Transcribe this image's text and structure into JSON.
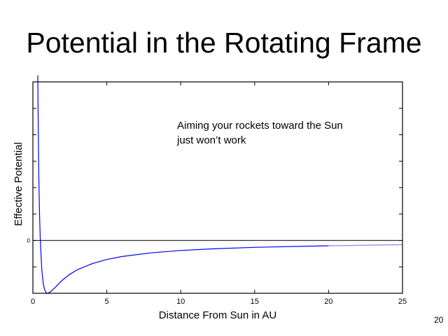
{
  "slide": {
    "title": "Potential in the Rotating Frame",
    "number": "20"
  },
  "chart_data": {
    "type": "line",
    "title": "Potential in the Rotating Frame",
    "xlabel": "Distance From Sun in AU",
    "ylabel": "Effective Potential",
    "xlim": [
      0,
      25
    ],
    "ylim": [
      -2,
      6
    ],
    "xticks": [
      0,
      5,
      10,
      15,
      20,
      25
    ],
    "yticks": [
      -1,
      0,
      1,
      2,
      3,
      4,
      5
    ],
    "ytick_labels": {
      "0": "0"
    },
    "grid": false,
    "zero_line": true,
    "annotation": [
      "Aiming your rockets toward the Sun",
      "just won’t work"
    ],
    "colors": {
      "curve": "#0000ff",
      "curve_faded": "#9a9ae8",
      "zero_line": "#333333"
    },
    "series": [
      {
        "x": [
          0.33,
          0.35,
          0.4,
          0.45,
          0.5,
          0.6,
          0.7,
          0.8,
          0.9,
          1,
          1.2,
          1.5,
          2,
          2.5,
          3,
          4,
          5,
          6,
          8,
          10,
          12,
          15,
          20,
          25
        ],
        "y": [
          6.25,
          4.9,
          2.5,
          0.99,
          0,
          -1.11,
          -1.63,
          -1.88,
          -1.98,
          -2,
          -1.94,
          -1.78,
          -1.5,
          -1.28,
          -1.11,
          -0.88,
          -0.72,
          -0.61,
          -0.47,
          -0.38,
          -0.32,
          -0.26,
          -0.2,
          -0.16
        ]
      }
    ]
  }
}
